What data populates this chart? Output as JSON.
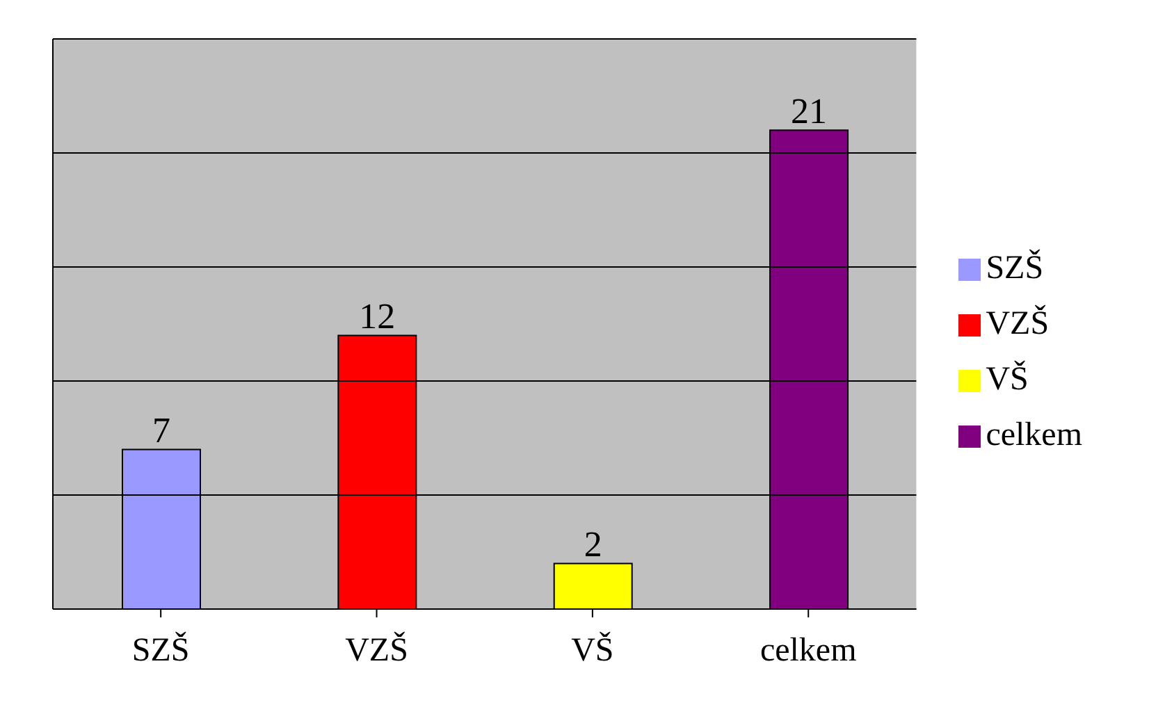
{
  "chart_data": {
    "type": "bar",
    "categories": [
      "SZŠ",
      "VZŠ",
      "VŠ",
      "celkem"
    ],
    "stacked": true,
    "series": [
      {
        "name": "SZŠ",
        "color": "#9999ff",
        "values": [
          7,
          null,
          null,
          null
        ]
      },
      {
        "name": "VZŠ",
        "color": "#ff0000",
        "values": [
          null,
          12,
          null,
          null
        ]
      },
      {
        "name": "VŠ",
        "color": "#ffff00",
        "values": [
          null,
          null,
          2,
          null
        ]
      },
      {
        "name": "celkem",
        "color": "#800080",
        "values": [
          null,
          null,
          null,
          21
        ]
      }
    ],
    "ylim": [
      0,
      25
    ],
    "yticks": [
      {
        "value": 0,
        "label": null
      },
      {
        "value": 5,
        "label": null
      },
      {
        "value": 10,
        "label": null
      },
      {
        "value": 15,
        "label": null
      },
      {
        "value": 20,
        "label": null
      },
      {
        "value": 25,
        "label": null
      }
    ],
    "tick_labels": "x",
    "grid": "y",
    "data_labels": true,
    "legend": "right"
  }
}
